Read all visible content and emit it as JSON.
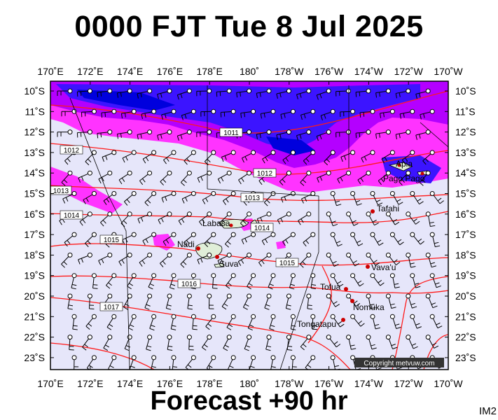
{
  "title": "0000 FJT Tue 8 Jul 2025",
  "footer": "Forecast +90 hr",
  "image_code": "IM2",
  "copyright": "Copyright metvuw.com",
  "axes": {
    "lon_labels": [
      "170˚E",
      "172˚E",
      "174˚E",
      "176˚E",
      "178˚E",
      "180˚",
      "178˚W",
      "176˚W",
      "174˚W",
      "172˚W",
      "170˚W"
    ],
    "lat_labels": [
      "10˚S",
      "11˚S",
      "12˚S",
      "13˚S",
      "14˚S",
      "15˚S",
      "16˚S",
      "17˚S",
      "18˚S",
      "19˚S",
      "20˚S",
      "21˚S",
      "22˚S",
      "23˚S"
    ]
  },
  "isobars": [
    {
      "label": "1011"
    },
    {
      "label": "1012"
    },
    {
      "label": "1012"
    },
    {
      "label": "1013"
    },
    {
      "label": "1013"
    },
    {
      "label": "1014"
    },
    {
      "label": "1014"
    },
    {
      "label": "1015"
    },
    {
      "label": "1015"
    },
    {
      "label": "1016"
    },
    {
      "label": "1017"
    }
  ],
  "places": [
    {
      "name": "Apia",
      "lon": -171.8,
      "lat": -13.8
    },
    {
      "name": "Pago Pago",
      "lon": -170.7,
      "lat": -14.3
    },
    {
      "name": "Tafahi",
      "lon": -173.7,
      "lat": -15.9
    },
    {
      "name": "Labasa",
      "lon": 179.4,
      "lat": -16.4
    },
    {
      "name": "Nadi",
      "lon": 177.4,
      "lat": -17.8
    },
    {
      "name": "Suva",
      "lon": 178.4,
      "lat": -18.1
    },
    {
      "name": "Vava'u",
      "lon": -174.0,
      "lat": -18.6
    },
    {
      "name": "Tofua",
      "lon": -175.1,
      "lat": -19.7
    },
    {
      "name": "Nomuka",
      "lon": -174.8,
      "lat": -20.3
    },
    {
      "name": "Tongatapu",
      "lon": -175.2,
      "lat": -21.2
    }
  ],
  "colors": {
    "background": "#e6e6fa",
    "precip_light": "#ff33ff",
    "precip_medium": "#b400ff",
    "precip_heavy": "#3c14ff",
    "precip_max": "#0000dd",
    "isobar": "#ff1a1a",
    "land": "#e0eed8",
    "place_marker": "#cc0000"
  }
}
